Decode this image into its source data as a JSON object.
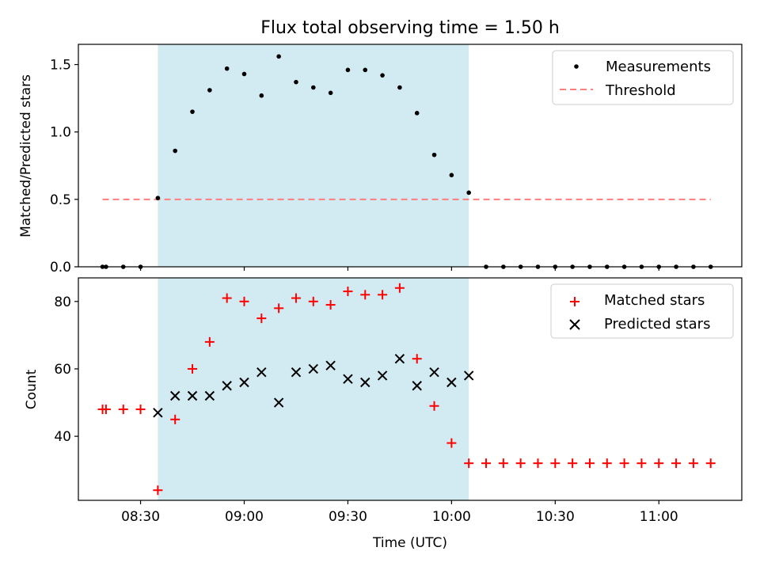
{
  "title": "Flux total observing time = 1.50 h",
  "colors": {
    "shade": "#add8e6",
    "threshold": "#ff7f7f",
    "matched": "#ff0000",
    "points": "#000000"
  },
  "chart_data": [
    {
      "type": "scatter",
      "ylabel": "Matched/Predicted stars",
      "ylim": [
        0,
        1.65
      ],
      "yticks": [
        0.0,
        0.5,
        1.0,
        1.5
      ],
      "ytick_labels": [
        "0.0",
        "0.5",
        "1.0",
        "1.5"
      ],
      "shaded_interval": [
        "08:35",
        "10:05"
      ],
      "legend_position": "top-right",
      "series": [
        {
          "name": "Measurements",
          "marker": "dot",
          "x": [
            "08:19",
            "08:20",
            "08:25",
            "08:30",
            "08:35",
            "08:40",
            "08:45",
            "08:50",
            "08:55",
            "09:00",
            "09:05",
            "09:10",
            "09:15",
            "09:20",
            "09:25",
            "09:30",
            "09:35",
            "09:40",
            "09:45",
            "09:50",
            "09:55",
            "10:00",
            "10:05",
            "10:10",
            "10:15",
            "10:20",
            "10:25",
            "10:30",
            "10:35",
            "10:40",
            "10:45",
            "10:50",
            "10:55",
            "11:00",
            "11:05",
            "11:10",
            "11:15"
          ],
          "y": [
            0,
            0,
            0,
            0,
            0.51,
            0.86,
            1.15,
            1.31,
            1.47,
            1.43,
            1.27,
            1.56,
            1.37,
            1.33,
            1.29,
            1.46,
            1.46,
            1.42,
            1.33,
            1.14,
            0.83,
            0.68,
            0.55,
            0,
            0,
            0,
            0,
            0,
            0,
            0,
            0,
            0,
            0,
            0,
            0,
            0,
            0
          ]
        },
        {
          "name": "Threshold",
          "marker": "dashed-line",
          "x": [
            "08:19",
            "11:15"
          ],
          "y": [
            0.5,
            0.5
          ]
        }
      ]
    },
    {
      "type": "scatter",
      "xlabel": "Time (UTC)",
      "ylabel": "Count",
      "ylim": [
        21,
        87
      ],
      "yticks": [
        40,
        60,
        80
      ],
      "ytick_labels": [
        "40",
        "60",
        "80"
      ],
      "xlim": [
        "08:12",
        "11:24"
      ],
      "xticks": [
        "08:30",
        "09:00",
        "09:30",
        "10:00",
        "10:30",
        "11:00"
      ],
      "xtick_labels": [
        "08:30",
        "09:00",
        "09:30",
        "10:00",
        "10:30",
        "11:00"
      ],
      "shaded_interval": [
        "08:35",
        "10:05"
      ],
      "legend_position": "top-right",
      "series": [
        {
          "name": "Matched stars",
          "marker": "plus",
          "x": [
            "08:19",
            "08:20",
            "08:25",
            "08:30",
            "08:35",
            "08:40",
            "08:45",
            "08:50",
            "08:55",
            "09:00",
            "09:05",
            "09:10",
            "09:15",
            "09:20",
            "09:25",
            "09:30",
            "09:35",
            "09:40",
            "09:45",
            "09:50",
            "09:55",
            "10:00",
            "10:05",
            "10:10",
            "10:15",
            "10:20",
            "10:25",
            "10:30",
            "10:35",
            "10:40",
            "10:45",
            "10:50",
            "10:55",
            "11:00",
            "11:05",
            "11:10",
            "11:15"
          ],
          "y": [
            48,
            48,
            48,
            48,
            24,
            45,
            60,
            68,
            81,
            80,
            75,
            78,
            81,
            80,
            79,
            83,
            82,
            82,
            84,
            63,
            49,
            38,
            32,
            32,
            32,
            32,
            32,
            32,
            32,
            32,
            32,
            32,
            32,
            32,
            32,
            32,
            32
          ]
        },
        {
          "name": "Predicted stars",
          "marker": "x",
          "x": [
            "08:35",
            "08:40",
            "08:45",
            "08:50",
            "08:55",
            "09:00",
            "09:05",
            "09:10",
            "09:15",
            "09:20",
            "09:25",
            "09:30",
            "09:35",
            "09:40",
            "09:45",
            "09:50",
            "09:55",
            "10:00",
            "10:05"
          ],
          "y": [
            47,
            52,
            52,
            52,
            55,
            56,
            59,
            50,
            59,
            60,
            61,
            57,
            56,
            58,
            63,
            55,
            59,
            56,
            58
          ]
        }
      ]
    }
  ]
}
